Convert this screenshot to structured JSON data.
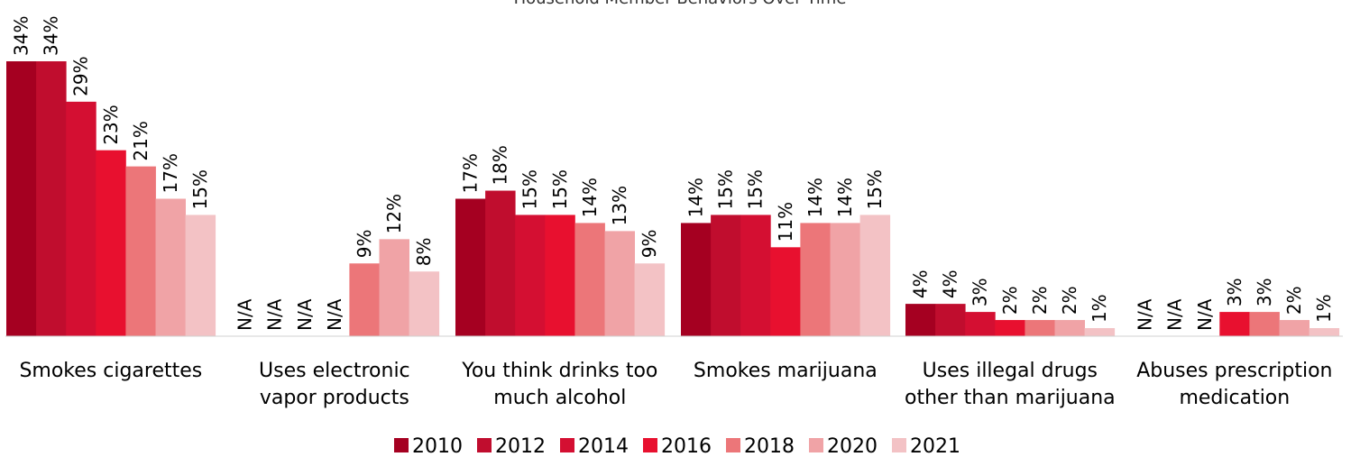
{
  "chart_data": {
    "type": "bar",
    "title": "Household Member Behaviors Over Time",
    "categories": [
      [
        "Smokes cigarettes"
      ],
      [
        "Uses electronic",
        "vapor products"
      ],
      [
        "You think drinks too",
        "much alcohol"
      ],
      [
        "Smokes marijuana"
      ],
      [
        "Uses illegal drugs",
        "other than marijuana"
      ],
      [
        "Abuses prescription",
        "medication"
      ]
    ],
    "series": [
      {
        "name": "2010",
        "color": "#a50021",
        "values": [
          34,
          null,
          17,
          14,
          4,
          null
        ]
      },
      {
        "name": "2012",
        "color": "#c00d2e",
        "values": [
          34,
          null,
          18,
          15,
          4,
          null
        ]
      },
      {
        "name": "2014",
        "color": "#d40f32",
        "values": [
          29,
          null,
          15,
          15,
          3,
          null
        ]
      },
      {
        "name": "2016",
        "color": "#e8102f",
        "values": [
          23,
          null,
          15,
          11,
          2,
          3
        ]
      },
      {
        "name": "2018",
        "color": "#ec7679",
        "values": [
          21,
          9,
          14,
          14,
          2,
          3
        ]
      },
      {
        "name": "2020",
        "color": "#f0a3a6",
        "values": [
          17,
          12,
          13,
          14,
          2,
          2
        ]
      },
      {
        "name": "2021",
        "color": "#f3c2c5",
        "values": [
          15,
          8,
          9,
          15,
          1,
          1
        ]
      }
    ],
    "value_suffix": "%",
    "missing_label": "N/A",
    "ylim": [
      0,
      34
    ],
    "grid": false,
    "legend_position": "bottom"
  }
}
